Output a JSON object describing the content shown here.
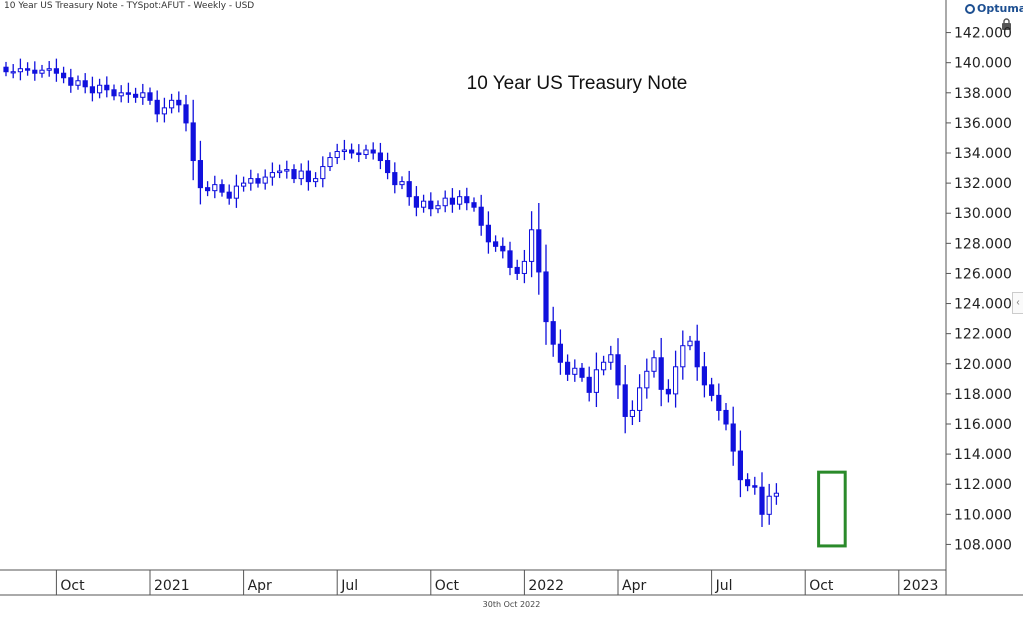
{
  "header": {
    "info": "10 Year US Treasury Note - TYSpot:AFUT - Weekly - USD"
  },
  "brand": {
    "name": "Optuma"
  },
  "icons": {
    "lock": "lock-icon",
    "collapse": "chevron-left-icon",
    "logo": "optuma-logo-icon"
  },
  "footer": {
    "date": "30th Oct 2022"
  },
  "colors": {
    "candle": "#1111dd",
    "highlight": "#2a8a2a",
    "axis": "#444444"
  },
  "chart_data": {
    "type": "candlestick",
    "title": "10 Year US Treasury Note",
    "ylim": [
      106.5,
      143.5
    ],
    "y_ticks": [
      "142.000",
      "140.000",
      "138.000",
      "136.000",
      "134.000",
      "132.000",
      "130.000",
      "128.000",
      "126.000",
      "124.000",
      "122.000",
      "120.000",
      "118.000",
      "116.000",
      "114.000",
      "112.000",
      "110.000",
      "108.000"
    ],
    "x_ticks": [
      "Oct",
      "2021",
      "Apr",
      "Jul",
      "Oct",
      "2022",
      "Apr",
      "Jul",
      "Oct",
      "2023"
    ],
    "x_tick_weeks": [
      7,
      20,
      33,
      46,
      59,
      72,
      85,
      98,
      111,
      124
    ],
    "highlight": {
      "from_week": 113,
      "to_week": 116,
      "y_low": 107.9,
      "y_high": 112.8
    },
    "series": [
      {
        "values": [
          139.4,
          139.4,
          139.6,
          139.5,
          139.3,
          139.5,
          139.6,
          139.3,
          139.0,
          138.5,
          138.8,
          138.4,
          138.0,
          138.5,
          138.2,
          137.8,
          138.0,
          137.9,
          137.7,
          138.0,
          137.5,
          136.6,
          137.0,
          137.5,
          137.2,
          136.0,
          133.5,
          131.7,
          131.5,
          131.9,
          131.4,
          131.0,
          131.8,
          132.0,
          132.3,
          132.0,
          132.4,
          132.7,
          132.8,
          132.9,
          132.3,
          132.8,
          132.1,
          132.3,
          133.1,
          133.7,
          134.1,
          134.2,
          134.0,
          133.9,
          134.2,
          134.0,
          133.5,
          132.7,
          131.9,
          132.1,
          131.1,
          130.4,
          130.8,
          130.3,
          130.5,
          131.0,
          130.6,
          131.1,
          130.7,
          130.4,
          129.2,
          128.1,
          127.8,
          127.5,
          126.4,
          126.0,
          126.8,
          128.9,
          126.1,
          122.8,
          121.3,
          120.1,
          119.3,
          119.7,
          119.1,
          118.1,
          119.6,
          120.1,
          120.6,
          118.6,
          116.5,
          116.9,
          118.4,
          119.5,
          120.4,
          118.3,
          118.0,
          119.8,
          121.2,
          121.5,
          119.8,
          118.6,
          117.9,
          116.9,
          116.0,
          114.2,
          112.3,
          111.9,
          111.8,
          110.0,
          111.2,
          111.4
        ]
      }
    ]
  }
}
